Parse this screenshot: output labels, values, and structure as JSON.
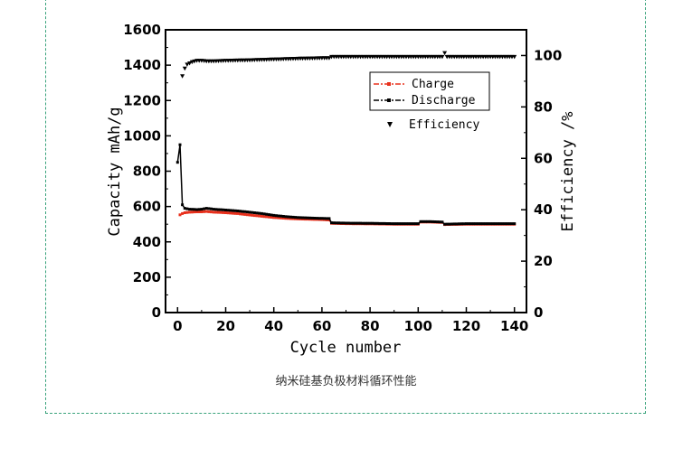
{
  "chart_data": {
    "type": "line",
    "xlabel": "Cycle number",
    "ylabel_left": "Capacity mAh/g",
    "ylabel_right": "Efficiency /%",
    "xlim": [
      -5,
      145
    ],
    "ylim_left": [
      0,
      1600
    ],
    "ylim_right": [
      0,
      110
    ],
    "x_ticks": [
      "0",
      "20",
      "40",
      "60",
      "80",
      "100",
      "120",
      "140"
    ],
    "y_left_ticks": [
      "0",
      "200",
      "400",
      "600",
      "800",
      "1000",
      "1200",
      "1400",
      "1600"
    ],
    "y_right_ticks": [
      "0",
      "20",
      "40",
      "60",
      "80",
      "100"
    ],
    "legend_position": "top-right",
    "series": [
      {
        "name": "Charge",
        "axis": "left",
        "color": "#e8301c",
        "x": [
          1,
          2,
          3,
          5,
          8,
          10,
          12,
          15,
          20,
          25,
          30,
          35,
          40,
          45,
          50,
          55,
          60,
          63,
          64,
          70,
          80,
          90,
          100,
          101,
          105,
          110,
          111,
          120,
          130,
          140
        ],
        "values": [
          553,
          560,
          565,
          568,
          570,
          570,
          572,
          568,
          565,
          560,
          552,
          545,
          538,
          533,
          530,
          528,
          526,
          524,
          505,
          503,
          502,
          500,
          500,
          512,
          512,
          510,
          498,
          500,
          500,
          500
        ]
      },
      {
        "name": "Discharge",
        "axis": "left",
        "color": "#000000",
        "x": [
          0,
          1,
          2,
          3,
          5,
          8,
          10,
          12,
          15,
          20,
          25,
          30,
          35,
          40,
          45,
          50,
          55,
          60,
          63,
          64,
          70,
          80,
          90,
          100,
          101,
          105,
          110,
          111,
          120,
          130,
          140
        ],
        "values": [
          850,
          950,
          610,
          590,
          585,
          583,
          585,
          590,
          585,
          580,
          575,
          568,
          560,
          550,
          543,
          538,
          535,
          533,
          532,
          508,
          506,
          505,
          503,
          503,
          515,
          515,
          512,
          500,
          503,
          503,
          503
        ]
      },
      {
        "name": "Efficiency",
        "axis": "right",
        "color": "#000000",
        "x": [
          2,
          3,
          4,
          5,
          6,
          8,
          10,
          12,
          15,
          20,
          30,
          40,
          50,
          60,
          63,
          64,
          70,
          80,
          90,
          100,
          110,
          111,
          112,
          120,
          130,
          140
        ],
        "values": [
          92,
          95,
          96.5,
          97,
          97.5,
          98,
          98,
          97.8,
          97.8,
          98,
          98.2,
          98.5,
          98.8,
          99,
          99,
          99.5,
          99.5,
          99.5,
          99.5,
          99.5,
          99.5,
          101,
          99.5,
          99.5,
          99.5,
          99.5
        ]
      }
    ]
  },
  "caption": "纳米硅基负极材料循环性能"
}
